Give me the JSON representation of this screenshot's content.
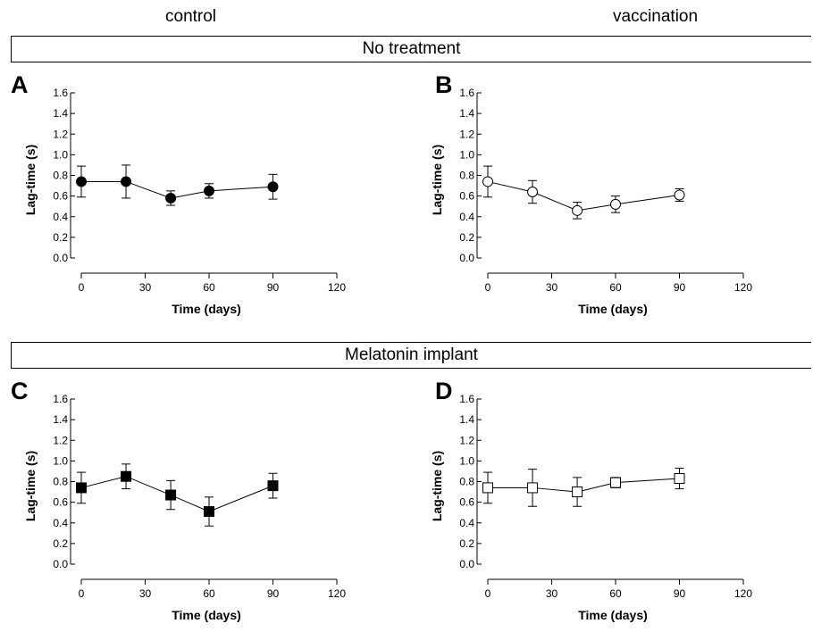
{
  "columns": {
    "left": "control",
    "right": "vaccination"
  },
  "banners": {
    "top": "No treatment",
    "bottom": "Melatonin implant"
  },
  "chart_data": [
    {
      "panel": "A",
      "type": "line",
      "marker": "filled-circle",
      "xlabel": "Time (days)",
      "ylabel": "Lag-time (s)",
      "xlim": [
        0,
        120
      ],
      "ylim": [
        0,
        1.6
      ],
      "xticks": [
        0,
        30,
        60,
        90,
        120
      ],
      "yticks": [
        "0.0",
        "0.2",
        "0.4",
        "0.6",
        "0.8",
        "1.0",
        "1.2",
        "1.4",
        "1.6"
      ],
      "x": [
        0,
        21,
        42,
        60,
        90
      ],
      "y": [
        0.74,
        0.74,
        0.58,
        0.65,
        0.69
      ],
      "err": [
        0.15,
        0.16,
        0.07,
        0.07,
        0.12
      ]
    },
    {
      "panel": "B",
      "type": "line",
      "marker": "open-circle",
      "xlabel": "Time (days)",
      "ylabel": "Lag-time (s)",
      "xlim": [
        0,
        120
      ],
      "ylim": [
        0,
        1.6
      ],
      "xticks": [
        0,
        30,
        60,
        90,
        120
      ],
      "yticks": [
        "0.0",
        "0.2",
        "0.4",
        "0.6",
        "0.8",
        "1.0",
        "1.2",
        "1.4",
        "1.6"
      ],
      "x": [
        0,
        21,
        42,
        60,
        90
      ],
      "y": [
        0.74,
        0.64,
        0.46,
        0.52,
        0.61
      ],
      "err": [
        0.15,
        0.11,
        0.08,
        0.08,
        0.06
      ]
    },
    {
      "panel": "C",
      "type": "line",
      "marker": "filled-square",
      "xlabel": "Time (days)",
      "ylabel": "Lag-time (s)",
      "xlim": [
        0,
        120
      ],
      "ylim": [
        0,
        1.6
      ],
      "xticks": [
        0,
        30,
        60,
        90,
        120
      ],
      "yticks": [
        "0.0",
        "0.2",
        "0.4",
        "0.6",
        "0.8",
        "1.0",
        "1.2",
        "1.4",
        "1.6"
      ],
      "x": [
        0,
        21,
        42,
        60,
        90
      ],
      "y": [
        0.74,
        0.85,
        0.67,
        0.51,
        0.76
      ],
      "err": [
        0.15,
        0.12,
        0.14,
        0.14,
        0.12
      ]
    },
    {
      "panel": "D",
      "type": "line",
      "marker": "open-square",
      "xlabel": "Time (days)",
      "ylabel": "Lag-time (s)",
      "xlim": [
        0,
        120
      ],
      "ylim": [
        0,
        1.6
      ],
      "xticks": [
        0,
        30,
        60,
        90,
        120
      ],
      "yticks": [
        "0.0",
        "0.2",
        "0.4",
        "0.6",
        "0.8",
        "1.0",
        "1.2",
        "1.4",
        "1.6"
      ],
      "x": [
        0,
        21,
        42,
        60,
        90
      ],
      "y": [
        0.74,
        0.74,
        0.7,
        0.79,
        0.83
      ],
      "err": [
        0.15,
        0.18,
        0.14,
        0.05,
        0.1
      ]
    }
  ]
}
